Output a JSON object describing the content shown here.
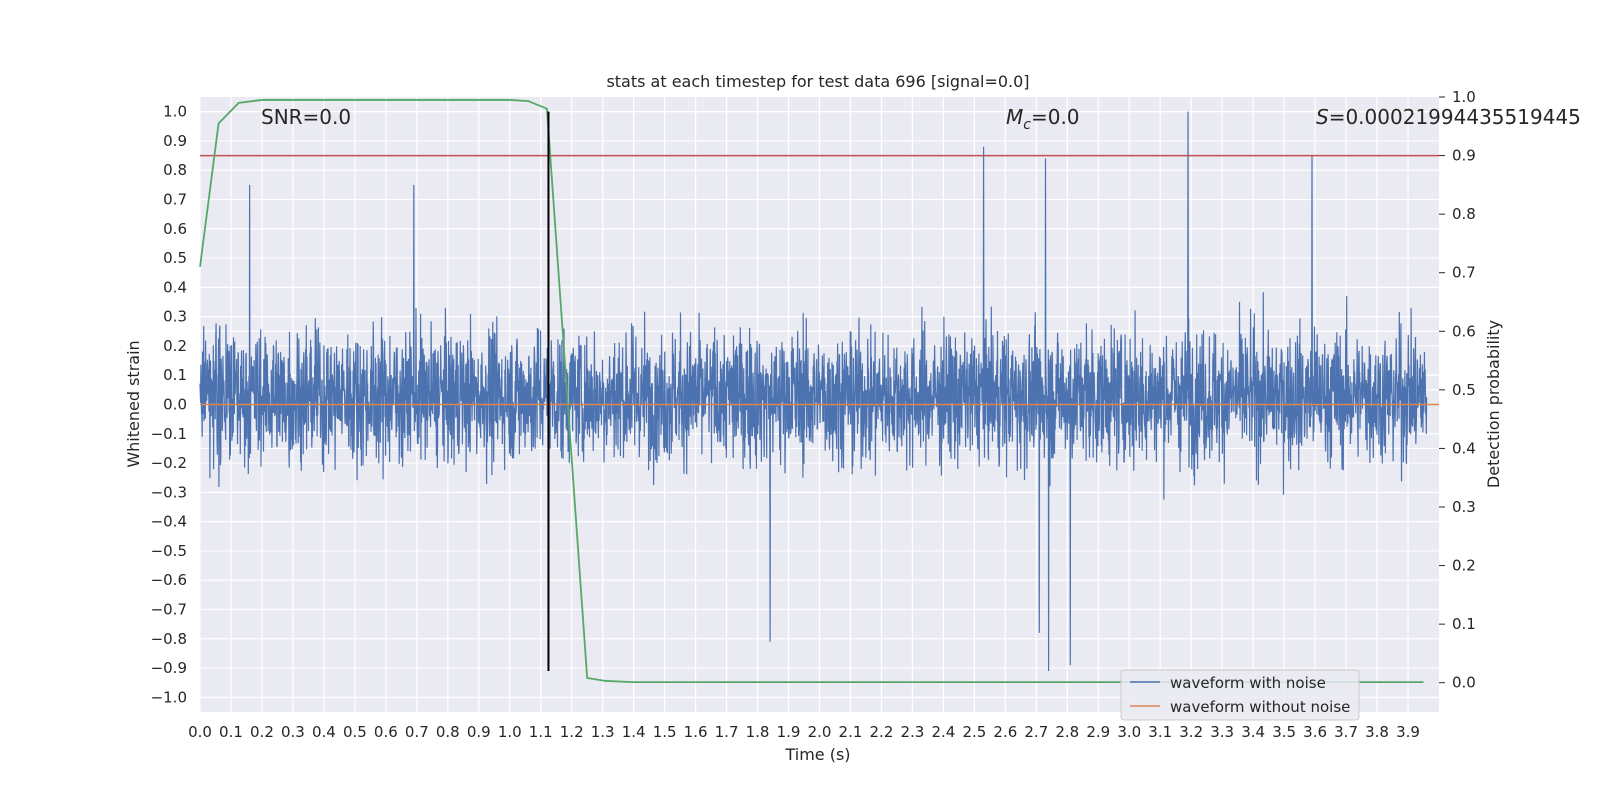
{
  "chart_data": {
    "type": "line",
    "title": "stats at each timestep for test data 696 [signal=0.0]",
    "xlabel": "Time (s)",
    "ylabel": "Whitened strain",
    "y2label": "Detection probability",
    "xlim": [
      0.0,
      4.0
    ],
    "ylim": [
      -1.05,
      1.05
    ],
    "y2lim": [
      -0.05,
      1.0
    ],
    "x_ticks": [
      "0.0",
      "0.1",
      "0.2",
      "0.3",
      "0.4",
      "0.5",
      "0.6",
      "0.7",
      "0.8",
      "0.9",
      "1.0",
      "1.1",
      "1.2",
      "1.3",
      "1.4",
      "1.5",
      "1.6",
      "1.7",
      "1.8",
      "1.9",
      "2.0",
      "2.1",
      "2.2",
      "2.3",
      "2.4",
      "2.5",
      "2.6",
      "2.7",
      "2.8",
      "2.9",
      "3.0",
      "3.1",
      "3.2",
      "3.3",
      "3.4",
      "3.5",
      "3.6",
      "3.7",
      "3.8",
      "3.9"
    ],
    "y_ticks": [
      "1.0",
      "0.9",
      "0.8",
      "0.7",
      "0.6",
      "0.5",
      "0.4",
      "0.3",
      "0.2",
      "0.1",
      "0.0",
      "−0.1",
      "−0.2",
      "−0.3",
      "−0.4",
      "−0.5",
      "−0.6",
      "−0.7",
      "−0.8",
      "−0.9",
      "−1.0"
    ],
    "y2_ticks": [
      "1.0",
      "0.9",
      "0.8",
      "0.7",
      "0.6",
      "0.5",
      "0.4",
      "0.3",
      "0.2",
      "0.1",
      "0.0"
    ],
    "grid": true,
    "background": "#EAEAF2",
    "legend_position": "lower-right",
    "annotations": {
      "snr": "SNR=0.0",
      "mc_symbol": "M",
      "mc_sub": "c",
      "mc_rest": "=0.0",
      "s_symbol": "S",
      "s_rest": "=0.00021994435519445"
    },
    "series": [
      {
        "name": "waveform with noise",
        "color": "#4C72B0",
        "axis": "left",
        "description": "dense noise samples spanning roughly -0.8 to 1.0",
        "envelope_peaks": [
          {
            "x": 2.53,
            "y": 0.88
          },
          {
            "x": 2.73,
            "y": 0.84
          },
          {
            "x": 3.19,
            "y": 1.0
          },
          {
            "x": 3.59,
            "y": 0.85
          },
          {
            "x": 0.16,
            "y": 0.75
          },
          {
            "x": 0.69,
            "y": 0.75
          }
        ],
        "envelope_troughs": [
          {
            "x": 2.74,
            "y": -0.91
          },
          {
            "x": 2.81,
            "y": -0.89
          },
          {
            "x": 1.84,
            "y": -0.81
          },
          {
            "x": 2.71,
            "y": -0.78
          }
        ]
      },
      {
        "name": "waveform without noise",
        "color": "#DD8452",
        "axis": "left",
        "x": [
          0.0,
          4.0
        ],
        "y": [
          0.0,
          0.0
        ]
      },
      {
        "name": "",
        "color": "#55A868",
        "axis": "right",
        "x": [
          0.0,
          0.06,
          0.125,
          0.2,
          0.5,
          1.0,
          1.06,
          1.12,
          1.25,
          1.31,
          1.4,
          2.0,
          3.0,
          3.95
        ],
        "y": [
          0.71,
          0.955,
          0.99,
          0.995,
          0.995,
          0.995,
          0.993,
          0.98,
          0.008,
          0.003,
          0.001,
          0.001,
          0.001,
          0.001
        ]
      }
    ],
    "hlines": [
      {
        "axis": "right",
        "y": 0.9,
        "color": "#C44E52"
      }
    ],
    "vlines": [
      {
        "x": 1.125,
        "ymin": -0.91,
        "ymax": 1.0,
        "color": "#000000"
      }
    ],
    "legend": [
      {
        "label": "waveform with noise",
        "color": "#4C72B0"
      },
      {
        "label": "waveform without noise",
        "color": "#DD8452"
      }
    ]
  }
}
